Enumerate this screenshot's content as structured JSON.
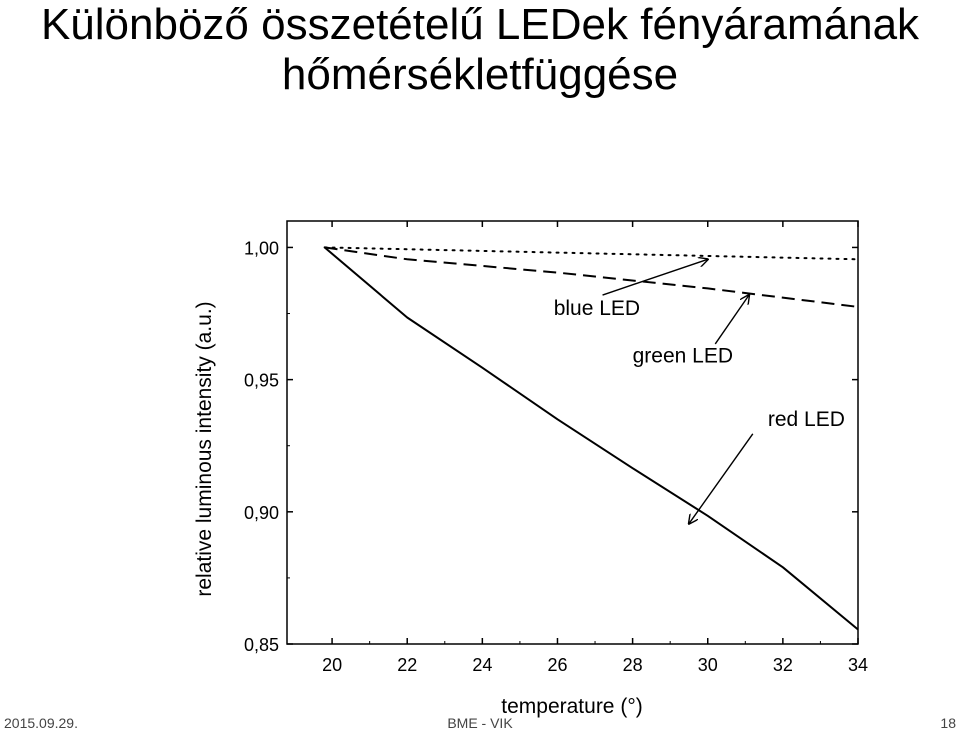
{
  "slide": {
    "title_line1": "Különböző összetételű LEDek fényáramának",
    "title_line2": "hőmérsékletfüggése"
  },
  "footer": {
    "date": "2015.09.29.",
    "center": "BME - VIK",
    "page": "18"
  },
  "chart_data": {
    "type": "line",
    "xlabel": "temperature (°)",
    "ylabel": "relative luminous intensity (a.u.)",
    "xlim": [
      18.8,
      34
    ],
    "ylim": [
      0.85,
      1.01
    ],
    "x_ticks": [
      20,
      22,
      24,
      26,
      28,
      30,
      32,
      34
    ],
    "x_tick_labels": [
      "20",
      "22",
      "24",
      "26",
      "28",
      "30",
      "32",
      "34"
    ],
    "y_ticks": [
      0.85,
      0.9,
      0.95,
      1.0
    ],
    "y_tick_labels": [
      "0,85",
      "0,90",
      "0,95",
      "1,00"
    ],
    "grid": false,
    "series": [
      {
        "name": "blue LED",
        "style": "dotted",
        "x": [
          19.8,
          34
        ],
        "y": [
          1.0,
          0.9955
        ]
      },
      {
        "name": "green LED",
        "style": "dashed",
        "x": [
          19.8,
          22,
          26,
          30,
          34
        ],
        "y": [
          1.0,
          0.9955,
          0.9905,
          0.9845,
          0.9775
        ]
      },
      {
        "name": "red LED",
        "style": "solid",
        "x": [
          19.8,
          22,
          24,
          26,
          28,
          30,
          32,
          34
        ],
        "y": [
          1.0,
          0.9735,
          0.9545,
          0.935,
          0.9165,
          0.8985,
          0.879,
          0.8555
        ]
      }
    ],
    "annotations": [
      {
        "text": "blue LED",
        "label_x": 25.9,
        "label_y": 0.9745,
        "arrow_from": [
          27.2,
          0.982
        ],
        "arrow_to": [
          30,
          0.9955
        ]
      },
      {
        "text": "green LED",
        "label_x": 28.0,
        "label_y": 0.9565,
        "arrow_from": [
          30.2,
          0.9635
        ],
        "arrow_to": [
          31.1,
          0.982
        ]
      },
      {
        "text": "red LED",
        "label_x": 31.6,
        "label_y": 0.9325,
        "arrow_from": [
          31.2,
          0.9295
        ],
        "arrow_to": [
          29.5,
          0.8955
        ]
      }
    ]
  }
}
